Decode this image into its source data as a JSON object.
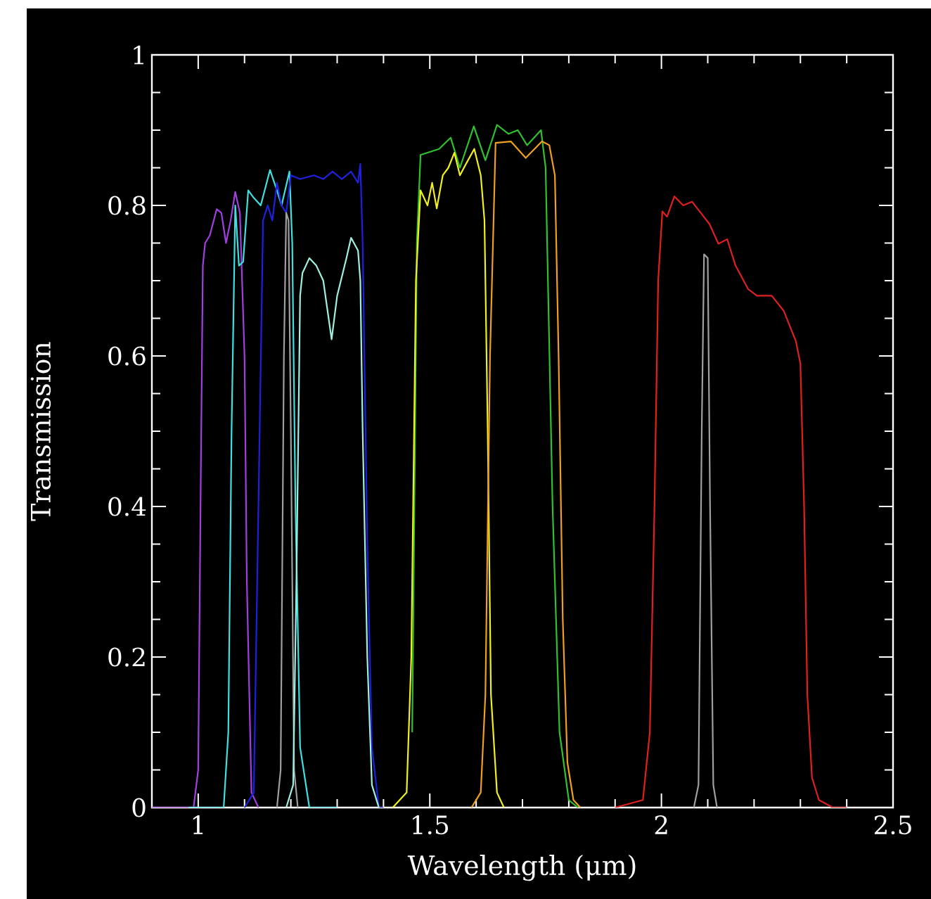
{
  "chart_data": {
    "type": "line",
    "xlabel": "Wavelength (μm)",
    "ylabel": "Transmission",
    "xlim": [
      0.9,
      2.5
    ],
    "ylim": [
      0,
      1
    ],
    "xticks": [
      1,
      1.5,
      2,
      2.5
    ],
    "yticks": [
      0,
      0.2,
      0.4,
      0.6,
      0.8,
      1
    ],
    "grid": false,
    "series": [
      {
        "color": "#a040e0",
        "x": [
          0.9,
          0.99,
          1.0,
          1.005,
          1.01,
          1.015,
          1.025,
          1.04,
          1.05,
          1.06,
          1.07,
          1.08,
          1.09,
          1.1,
          1.105,
          1.115,
          1.13
        ],
        "values": [
          0,
          0,
          0.05,
          0.4,
          0.72,
          0.75,
          0.76,
          0.795,
          0.79,
          0.75,
          0.78,
          0.818,
          0.79,
          0.6,
          0.3,
          0.02,
          0
        ]
      },
      {
        "color": "#40e0e0",
        "x": [
          0.98,
          1.055,
          1.065,
          1.072,
          1.08,
          1.088,
          1.097,
          1.108,
          1.12,
          1.135,
          1.155,
          1.17,
          1.18,
          1.197,
          1.203,
          1.21,
          1.22,
          1.24,
          1.3
        ],
        "values": [
          0,
          0,
          0.1,
          0.5,
          0.8,
          0.72,
          0.725,
          0.82,
          0.81,
          0.8,
          0.847,
          0.82,
          0.8,
          0.845,
          0.75,
          0.4,
          0.08,
          0,
          0
        ]
      },
      {
        "color": "#2020e0",
        "x": [
          1.1,
          1.12,
          1.13,
          1.14,
          1.15,
          1.16,
          1.17,
          1.18,
          1.19,
          1.2,
          1.22,
          1.25,
          1.27,
          1.29,
          1.31,
          1.33,
          1.345,
          1.35,
          1.355,
          1.365,
          1.375,
          1.39,
          1.4
        ],
        "values": [
          0,
          0.02,
          0.4,
          0.78,
          0.8,
          0.78,
          0.83,
          0.8,
          0.79,
          0.84,
          0.835,
          0.84,
          0.835,
          0.845,
          0.835,
          0.845,
          0.83,
          0.855,
          0.75,
          0.35,
          0.08,
          0,
          0
        ]
      },
      {
        "color": "#a0a0a0",
        "x": [
          1.17,
          1.178,
          1.185,
          1.19,
          1.195,
          1.2,
          1.207,
          1.215
        ],
        "values": [
          0,
          0.05,
          0.6,
          0.79,
          0.78,
          0.5,
          0.05,
          0
        ]
      },
      {
        "color": "#a0f0e0",
        "x": [
          1.19,
          1.205,
          1.212,
          1.22,
          1.225,
          1.24,
          1.255,
          1.27,
          1.288,
          1.3,
          1.32,
          1.33,
          1.345,
          1.35,
          1.355,
          1.365,
          1.375,
          1.39
        ],
        "values": [
          0,
          0.03,
          0.3,
          0.68,
          0.71,
          0.73,
          0.72,
          0.7,
          0.622,
          0.68,
          0.73,
          0.757,
          0.74,
          0.7,
          0.5,
          0.2,
          0.03,
          0
        ]
      },
      {
        "color": "#30c030",
        "x": [
          1.462,
          1.472,
          1.48,
          1.52,
          1.545,
          1.565,
          1.595,
          1.62,
          1.645,
          1.67,
          1.69,
          1.71,
          1.74,
          1.75,
          1.755,
          1.765,
          1.78,
          1.8,
          1.82
        ],
        "values": [
          0.1,
          0.75,
          0.867,
          0.875,
          0.89,
          0.85,
          0.905,
          0.86,
          0.907,
          0.895,
          0.9,
          0.88,
          0.9,
          0.85,
          0.7,
          0.4,
          0.1,
          0.01,
          0
        ]
      },
      {
        "color": "#f0f020",
        "x": [
          1.42,
          1.45,
          1.46,
          1.47,
          1.48,
          1.495,
          1.505,
          1.515,
          1.528,
          1.54,
          1.553,
          1.565,
          1.578,
          1.596,
          1.61,
          1.618,
          1.625,
          1.632,
          1.645,
          1.66
        ],
        "values": [
          0,
          0.02,
          0.2,
          0.7,
          0.82,
          0.8,
          0.83,
          0.796,
          0.84,
          0.85,
          0.87,
          0.84,
          0.855,
          0.875,
          0.84,
          0.78,
          0.5,
          0.15,
          0.02,
          0
        ]
      },
      {
        "color": "#f0a020",
        "x": [
          1.59,
          1.61,
          1.62,
          1.63,
          1.642,
          1.675,
          1.707,
          1.726,
          1.742,
          1.758,
          1.77,
          1.778,
          1.787,
          1.797,
          1.81,
          1.825
        ],
        "values": [
          0,
          0.02,
          0.15,
          0.6,
          0.883,
          0.885,
          0.863,
          0.875,
          0.885,
          0.88,
          0.84,
          0.6,
          0.25,
          0.06,
          0.01,
          0
        ]
      },
      {
        "color": "#e02020",
        "x": [
          1.9,
          1.96,
          1.975,
          1.985,
          1.993,
          2.002,
          2.012,
          2.028,
          2.047,
          2.066,
          2.085,
          2.104,
          2.123,
          2.142,
          2.16,
          2.187,
          2.206,
          2.238,
          2.264,
          2.29,
          2.3,
          2.308,
          2.315,
          2.325,
          2.34,
          2.37,
          2.4
        ],
        "values": [
          0,
          0.01,
          0.1,
          0.4,
          0.7,
          0.792,
          0.785,
          0.812,
          0.8,
          0.805,
          0.79,
          0.775,
          0.749,
          0.755,
          0.72,
          0.689,
          0.68,
          0.68,
          0.66,
          0.62,
          0.59,
          0.4,
          0.15,
          0.04,
          0.01,
          0,
          0
        ]
      },
      {
        "color": "#a0a0a0",
        "x": [
          2.07,
          2.08,
          2.087,
          2.092,
          2.1,
          2.105,
          2.112,
          2.12
        ],
        "values": [
          0,
          0.03,
          0.5,
          0.735,
          0.73,
          0.4,
          0.03,
          0
        ]
      }
    ]
  }
}
